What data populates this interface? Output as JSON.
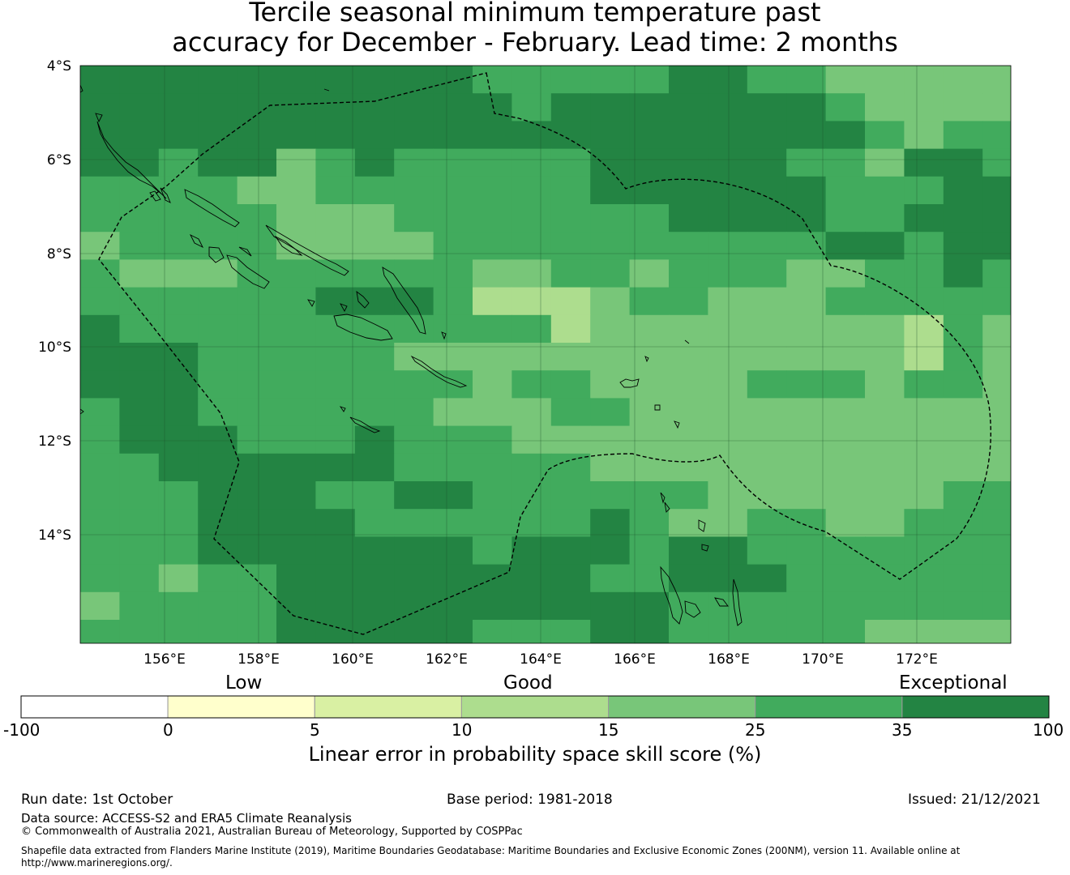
{
  "title": {
    "line1": "Tercile seasonal minimum temperature past",
    "line2": "accuracy for December - February. Lead time: 2 months"
  },
  "map": {
    "lat_labels": [
      "4°S",
      "6°S",
      "8°S",
      "10°S",
      "12°S",
      "14°S"
    ],
    "lon_labels": [
      "156°E",
      "158°E",
      "160°E",
      "162°E",
      "164°E",
      "166°E",
      "168°E",
      "170°E",
      "172°E"
    ],
    "lon_range": [
      154.2,
      174.0
    ],
    "lat_range": [
      -4.0,
      -16.3
    ],
    "color_legend": {
      "1": "#d9f0a3",
      "2": "#addd8e",
      "3": "#78c679",
      "4": "#41ab5d",
      "5": "#238443"
    },
    "grid_rows": [
      "5555555555444445544333332",
      "5555555555545555555433333",
      "5555555555555555555543444",
      "5545534544444555554435544",
      "4444334444444555555444554",
      "4444433344444445555445555",
      "3444433334444444444554555",
      "4333444444334434443344544",
      "4444445554222344333444444",
      "5444444444442333333332433",
      "5554444433333333333332433",
      "5554444444344333344434433",
      "4554444443334433333333333",
      "4555444544433333333333333",
      "4455555544444333333333333",
      "4445554455444444333333443",
      "4445555444444543344334443",
      "4445555555455545544444443",
      "4434455555555445554444444",
      "3444455555555554444444444",
      "4444455555444554444433333"
    ]
  },
  "colorbar": {
    "top_labels": [
      "Low",
      "Good",
      "Exceptional"
    ],
    "ticks": [
      "-100",
      "0",
      "5",
      "10",
      "15",
      "25",
      "35",
      "100"
    ],
    "colors": [
      "#ffffff",
      "#ffffcc",
      "#d9f0a3",
      "#addd8e",
      "#78c679",
      "#41ab5d",
      "#238443"
    ],
    "label": "Linear error in probability space skill score (%)"
  },
  "footer": {
    "run_date": "Run date: 1st October",
    "base_period": "Base period: 1981-2018",
    "issued": "Issued: 21/12/2021",
    "data_source": "Data source: ACCESS-S2 and ERA5 Climate Reanalysis",
    "copyright": "© Commonwealth of Australia 2021, Australian Bureau of Meteorology, Supported by COSPPac",
    "shapefile": "Shapefile data extracted from Flanders Marine Institute (2019), Maritime Boundaries Geodatabase: Maritime Boundaries and Exclusive Economic Zones (200NM), version 11. Available online at http://www.marineregions.org/."
  }
}
